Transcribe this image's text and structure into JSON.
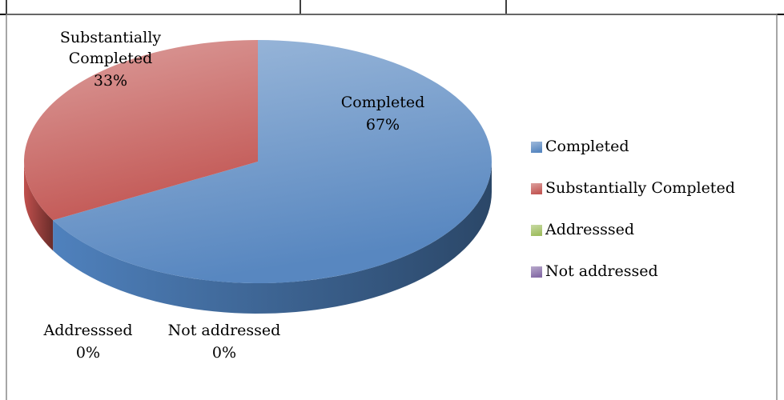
{
  "chart_data": {
    "type": "pie",
    "categories": [
      "Completed",
      "Substantially Completed",
      "Addresssed",
      "Not addressed"
    ],
    "values": [
      67,
      33,
      0,
      0
    ],
    "value_labels": [
      "67%",
      "33%",
      "0%",
      "0%"
    ],
    "colors": [
      "#4f81bd",
      "#c0504d",
      "#9bbb59",
      "#8064a2"
    ],
    "three_d": true,
    "legend": "right"
  }
}
